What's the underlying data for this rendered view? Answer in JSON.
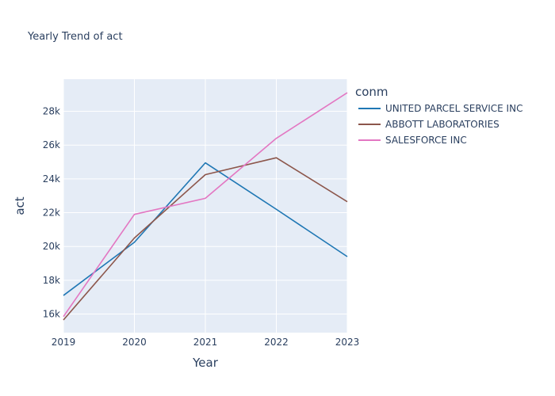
{
  "chart_data": {
    "type": "line",
    "title": "Yearly Trend of act",
    "xlabel": "Year",
    "ylabel": "act",
    "x": [
      "2019",
      "2020",
      "2021",
      "2022",
      "2023"
    ],
    "xlim": [
      2019,
      2023
    ],
    "ylim": [
      14900,
      29900
    ],
    "yticks": [
      16000,
      18000,
      20000,
      22000,
      24000,
      26000,
      28000
    ],
    "ytick_labels": [
      "16k",
      "18k",
      "20k",
      "22k",
      "24k",
      "26k",
      "28k"
    ],
    "grid": true,
    "legend": {
      "title": "conm",
      "placement": "top-right outside"
    },
    "series": [
      {
        "name": "UNITED PARCEL SERVICE INC",
        "color": "#1f77b4",
        "values": [
          17100,
          20250,
          24950,
          22200,
          19400
        ]
      },
      {
        "name": "ABBOTT LABORATORIES",
        "color": "#8c564b",
        "values": [
          15650,
          20500,
          24250,
          25250,
          22650
        ]
      },
      {
        "name": "SALESFORCE INC",
        "color": "#e377c2",
        "values": [
          15850,
          21900,
          22850,
          26400,
          29100
        ]
      }
    ]
  }
}
